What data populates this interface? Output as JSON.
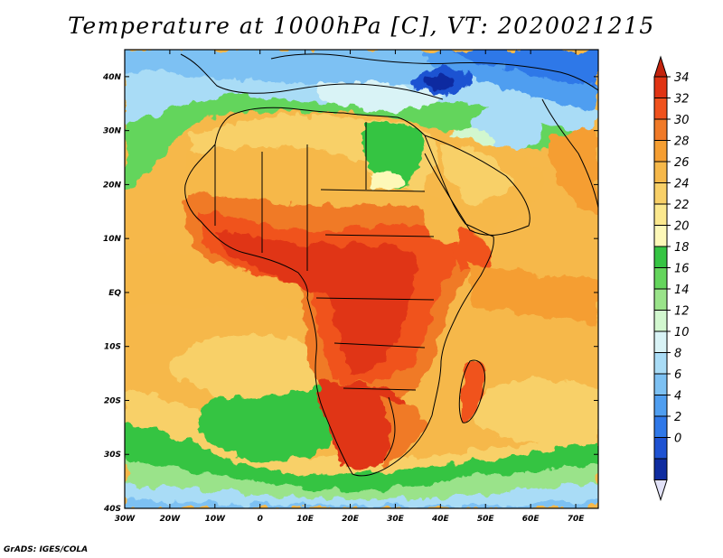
{
  "title": "Temperature at 1000hPa [C], VT: 2020021215",
  "footer": "GrADS: IGES/COLA",
  "map": {
    "lon_range": [
      -30,
      75
    ],
    "lat_range": [
      -40,
      45
    ],
    "lon_ticks": [
      {
        "v": -30,
        "label": "30W"
      },
      {
        "v": -20,
        "label": "20W"
      },
      {
        "v": -10,
        "label": "10W"
      },
      {
        "v": 0,
        "label": "0"
      },
      {
        "v": 10,
        "label": "10E"
      },
      {
        "v": 20,
        "label": "20E"
      },
      {
        "v": 30,
        "label": "30E"
      },
      {
        "v": 40,
        "label": "40E"
      },
      {
        "v": 50,
        "label": "50E"
      },
      {
        "v": 60,
        "label": "60E"
      },
      {
        "v": 70,
        "label": "70E"
      }
    ],
    "lat_ticks": [
      {
        "v": 40,
        "label": "40N"
      },
      {
        "v": 30,
        "label": "30N"
      },
      {
        "v": 20,
        "label": "20N"
      },
      {
        "v": 10,
        "label": "10N"
      },
      {
        "v": 0,
        "label": "EQ"
      },
      {
        "v": -10,
        "label": "10S"
      },
      {
        "v": -20,
        "label": "20S"
      },
      {
        "v": -30,
        "label": "30S"
      },
      {
        "v": -40,
        "label": "40S"
      }
    ]
  },
  "colorbar": {
    "labels": [
      "34",
      "32",
      "30",
      "28",
      "26",
      "24",
      "22",
      "20",
      "18",
      "16",
      "14",
      "12",
      "10",
      "8",
      "6",
      "4",
      "2",
      "0"
    ],
    "colors": [
      "#e03414",
      "#f0521d",
      "#f07a28",
      "#f59e32",
      "#f6b84a",
      "#f8d068",
      "#fbe88e",
      "#fdf8b8",
      "#36c443",
      "#64d55c",
      "#9ae38a",
      "#d2f7cf",
      "#d9f3f6",
      "#a9dcf6",
      "#7dc1f3",
      "#4f9ef0",
      "#2f78e8",
      "#1e52d2",
      "#0f2ca0"
    ],
    "over_color": "#c3230d",
    "under_color": "#e2e2f8"
  }
}
